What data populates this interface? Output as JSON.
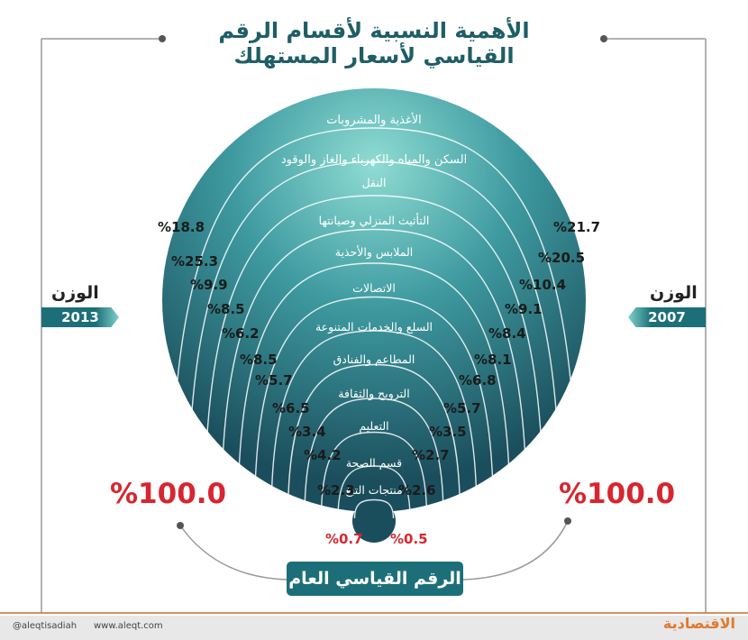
{
  "title_line1": "الأهمية النسبية لأقسام الرقم",
  "title_line2": "القياسي لأسعار المستهلك",
  "weight_label": "الوزن",
  "year_left": "2013",
  "year_right": "2007",
  "general_index": "الرقم القياسي العام",
  "footer_twitter": "@aleqtisadiah",
  "footer_web": "www.aleqt.com",
  "logo_text": "الاقتصادية",
  "colors": {
    "teal_dark": "#1c6f78",
    "teal_light": "#7fd0c9",
    "red": "#d7262f"
  },
  "chart_data": {
    "type": "table",
    "title": "الأهمية النسبية لأقسام الرقم القياسي لأسعار المستهلك",
    "total_label": "الرقم القياسي العام",
    "total_2013": "%100.0",
    "total_2007": "%100.0",
    "categories": [
      "الأغذية والمشروبات",
      "السكن والمياه والكهرباء والغاز والوقود",
      "النقل",
      "التأثيث المنزلي وصيانتها",
      "الملابس والأحذية",
      "الاتصالات",
      "السلع والخدمات المتنوعة",
      "المطاعم والفنادق",
      "الترويح والثقافة",
      "التعليم",
      "قسم الصحة",
      "منتجات التبغ"
    ],
    "series": [
      {
        "name": "2013",
        "values": [
          "%18.8",
          "%25.3",
          "%9.9",
          "%8.5",
          "%6.2",
          "%8.5",
          "%5.7",
          "%6.5",
          "%3.4",
          "%4.2",
          "%2.3",
          "%0.7"
        ]
      },
      {
        "name": "2007",
        "values": [
          "%21.7",
          "%20.5",
          "%10.4",
          "%9.1",
          "%8.4",
          "%8.1",
          "%6.8",
          "%5.7",
          "%3.5",
          "%2.7",
          "%2.6",
          "%0.5"
        ]
      }
    ]
  }
}
